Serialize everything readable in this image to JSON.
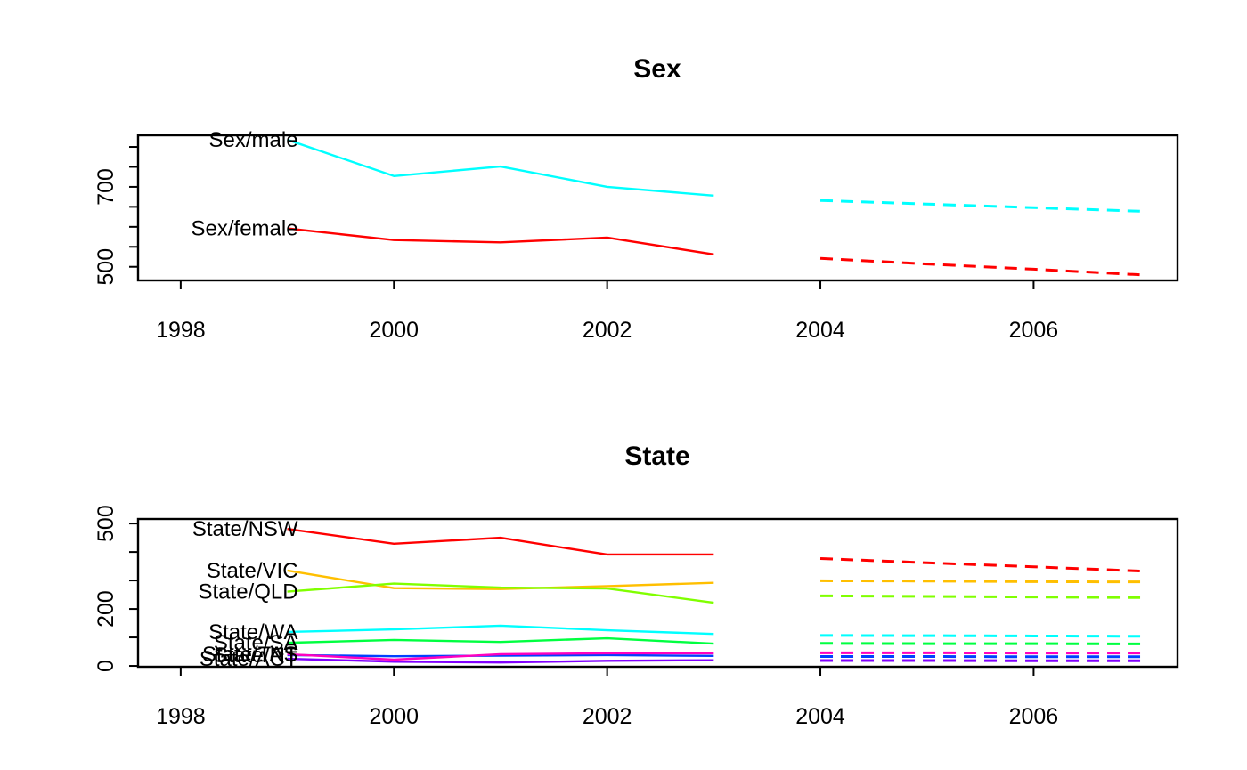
{
  "figure": {
    "background": "#ffffff",
    "axis_color": "#000000",
    "historical_style": "solid",
    "forecast_style": "dashed"
  },
  "chart_data": [
    {
      "type": "line",
      "title": "Sex",
      "xlim": [
        1997.6,
        2007.35
      ],
      "ylim": [
        466,
        829
      ],
      "xticks": [
        1998,
        2000,
        2002,
        2004,
        2006
      ],
      "xtick_labels": [
        "1998",
        "2000",
        "2002",
        "2004",
        "2006"
      ],
      "yticks": [
        500,
        550,
        600,
        650,
        700,
        750,
        800
      ],
      "ytick_labels": [
        "500",
        "",
        "",
        "",
        "700",
        "",
        ""
      ],
      "grid": false,
      "legend": "inline-labels-at-series-start",
      "historical_years": [
        1999,
        2000,
        2001,
        2002,
        2003
      ],
      "forecast_years": [
        2004,
        2005,
        2006,
        2007
      ],
      "series": [
        {
          "name": "Sex/female",
          "label": "Sex/female",
          "color": "#FF0000",
          "historical": [
            596,
            567,
            561,
            573,
            531
          ],
          "forecast": [
            521,
            507,
            494,
            480
          ]
        },
        {
          "name": "Sex/male",
          "label": "Sex/male",
          "color": "#00FFFF",
          "historical": [
            818,
            727,
            751,
            700,
            678
          ],
          "forecast": [
            666,
            657,
            648,
            639
          ]
        }
      ]
    },
    {
      "type": "line",
      "title": "State",
      "xlim": [
        1997.6,
        2007.35
      ],
      "ylim": [
        -3,
        516
      ],
      "xticks": [
        1998,
        2000,
        2002,
        2004,
        2006
      ],
      "xtick_labels": [
        "1998",
        "2000",
        "2002",
        "2004",
        "2006"
      ],
      "yticks": [
        0,
        100,
        200,
        300,
        400,
        500
      ],
      "ytick_labels": [
        "0",
        "",
        "200",
        "",
        "",
        "500"
      ],
      "grid": false,
      "legend": "inline-labels-at-series-start",
      "historical_years": [
        1999,
        2000,
        2001,
        2002,
        2003
      ],
      "forecast_years": [
        2004,
        2005,
        2006,
        2007
      ],
      "series": [
        {
          "name": "State/NSW",
          "label": "State/NSW",
          "color": "#FF0000",
          "historical": [
            481,
            429,
            450,
            391,
            391
          ],
          "forecast": [
            377,
            362,
            348,
            333
          ]
        },
        {
          "name": "State/VIC",
          "label": "State/VIC",
          "color": "#FFBF00",
          "historical": [
            335,
            273,
            270,
            280,
            292
          ],
          "forecast": [
            299,
            298,
            296,
            295
          ]
        },
        {
          "name": "State/QLD",
          "label": "State/QLD",
          "color": "#80FF00",
          "historical": [
            261,
            289,
            275,
            272,
            222
          ],
          "forecast": [
            246,
            244,
            242,
            240
          ]
        },
        {
          "name": "State/SA",
          "label": "State/SA",
          "color": "#00FF40",
          "historical": [
            81,
            91,
            84,
            97,
            78
          ],
          "forecast": [
            79,
            78,
            78,
            77
          ]
        },
        {
          "name": "State/WA",
          "label": "State/WA",
          "color": "#00FFFF",
          "historical": [
            119,
            128,
            141,
            125,
            112
          ],
          "forecast": [
            107,
            106,
            105,
            104
          ]
        },
        {
          "name": "State/NT",
          "label": "State/NT",
          "color": "#0040FF",
          "historical": [
            38,
            34,
            36,
            38,
            35
          ],
          "forecast": [
            33,
            33,
            32,
            32
          ]
        },
        {
          "name": "State/ACT",
          "label": "State/ACT",
          "color": "#8000FF",
          "historical": [
            25,
            15,
            12,
            18,
            20
          ],
          "forecast": [
            19,
            19,
            18,
            18
          ]
        },
        {
          "name": "State/TAS",
          "label": "State/TAS",
          "color": "#FF00BF",
          "historical": [
            41,
            22,
            41,
            44,
            44
          ],
          "forecast": [
            46,
            46,
            45,
            45
          ]
        }
      ]
    }
  ]
}
